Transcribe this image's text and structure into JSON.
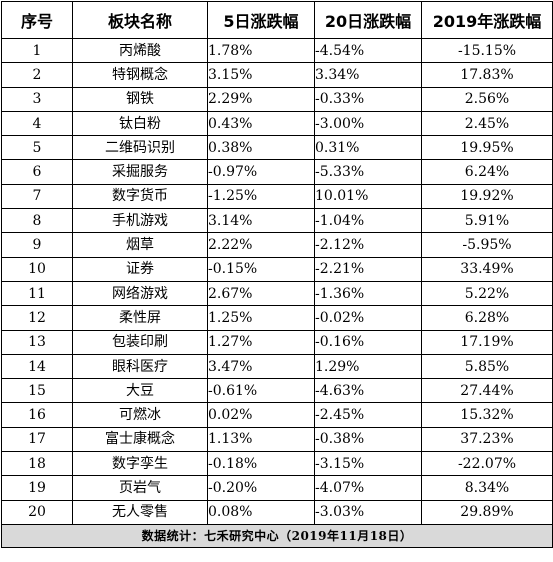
{
  "table": {
    "headers": [
      "序号",
      "板块名称",
      "5日涨跌幅",
      "20日涨跌幅",
      "2019年涨跌幅"
    ],
    "rows": [
      {
        "idx": "1",
        "name": "丙烯酸",
        "d5": "1.78%",
        "d20": "-4.54%",
        "y2019": "-15.15%"
      },
      {
        "idx": "2",
        "name": "特钢概念",
        "d5": "3.15%",
        "d20": "3.34%",
        "y2019": "17.83%"
      },
      {
        "idx": "3",
        "name": "钢铁",
        "d5": "2.29%",
        "d20": "-0.33%",
        "y2019": "2.56%"
      },
      {
        "idx": "4",
        "name": "钛白粉",
        "d5": "0.43%",
        "d20": "-3.00%",
        "y2019": "2.45%"
      },
      {
        "idx": "5",
        "name": "二维码识别",
        "d5": "0.38%",
        "d20": "0.31%",
        "y2019": "19.95%"
      },
      {
        "idx": "6",
        "name": "采掘服务",
        "d5": "-0.97%",
        "d20": "-5.33%",
        "y2019": "6.24%"
      },
      {
        "idx": "7",
        "name": "数字货币",
        "d5": "-1.25%",
        "d20": "10.01%",
        "y2019": "19.92%"
      },
      {
        "idx": "8",
        "name": "手机游戏",
        "d5": "3.14%",
        "d20": "-1.04%",
        "y2019": "5.91%"
      },
      {
        "idx": "9",
        "name": "烟草",
        "d5": "2.22%",
        "d20": "-2.12%",
        "y2019": "-5.95%"
      },
      {
        "idx": "10",
        "name": "证券",
        "d5": "-0.15%",
        "d20": "-2.21%",
        "y2019": "33.49%"
      },
      {
        "idx": "11",
        "name": "网络游戏",
        "d5": "2.67%",
        "d20": "-1.36%",
        "y2019": "5.22%"
      },
      {
        "idx": "12",
        "name": "柔性屏",
        "d5": "1.25%",
        "d20": "-0.02%",
        "y2019": "6.28%"
      },
      {
        "idx": "13",
        "name": "包装印刷",
        "d5": "1.27%",
        "d20": "-0.16%",
        "y2019": "17.19%"
      },
      {
        "idx": "14",
        "name": "眼科医疗",
        "d5": "3.47%",
        "d20": "1.29%",
        "y2019": "5.85%"
      },
      {
        "idx": "15",
        "name": "大豆",
        "d5": "-0.61%",
        "d20": "-4.63%",
        "y2019": "27.44%"
      },
      {
        "idx": "16",
        "name": "可燃冰",
        "d5": "0.02%",
        "d20": "-2.45%",
        "y2019": "15.32%"
      },
      {
        "idx": "17",
        "name": "富士康概念",
        "d5": "1.13%",
        "d20": "-0.38%",
        "y2019": "37.23%"
      },
      {
        "idx": "18",
        "name": "数字孪生",
        "d5": "-0.18%",
        "d20": "-3.15%",
        "y2019": "-22.07%"
      },
      {
        "idx": "19",
        "name": "页岩气",
        "d5": "-0.20%",
        "d20": "-4.07%",
        "y2019": "8.34%"
      },
      {
        "idx": "20",
        "name": "无人零售",
        "d5": "0.08%",
        "d20": "-3.03%",
        "y2019": "29.89%"
      }
    ],
    "footer": "数据统计：七禾研究中心（2019年11月18日）"
  },
  "colors": {
    "border": "#000000",
    "footer_bg": "#d9d9d9",
    "background": "#ffffff"
  }
}
